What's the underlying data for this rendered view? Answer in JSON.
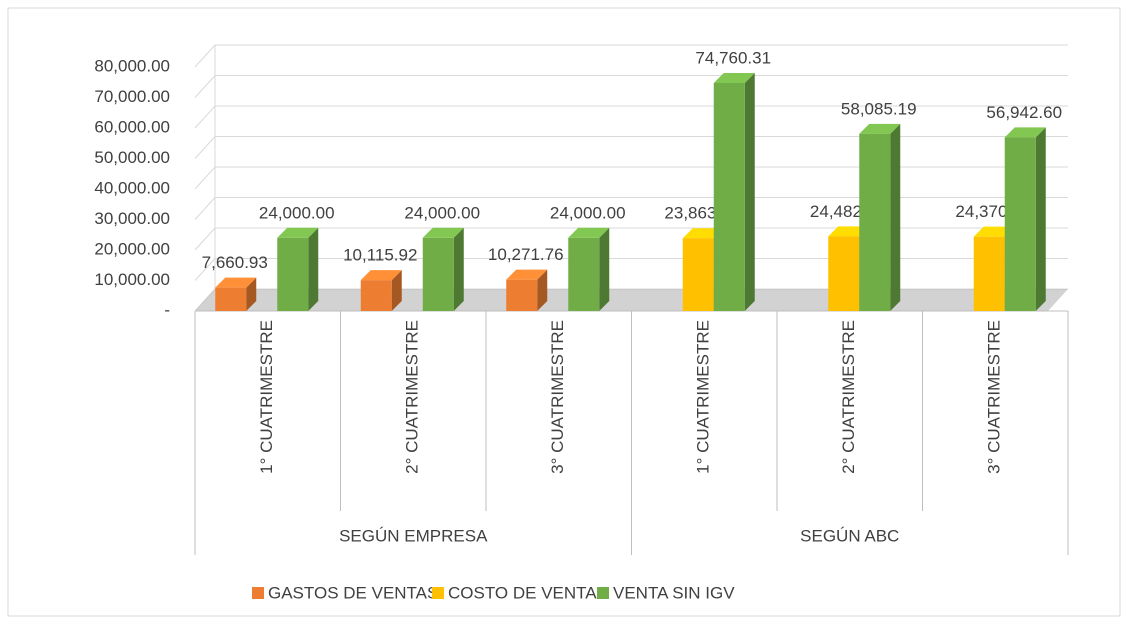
{
  "chart_data": {
    "type": "bar3d",
    "categories": [
      "1° CUATRIMESTRE",
      "2° CUATRIMESTRE",
      "3° CUATRIMESTRE",
      "1° CUATRIMESTRE",
      "2° CUATRIMESTRE",
      "3° CUATRIMESTRE"
    ],
    "groups": [
      {
        "name": "SEGÚN EMPRESA",
        "span": 3
      },
      {
        "name": "SEGÚN ABC",
        "span": 3
      }
    ],
    "series": [
      {
        "name": "GASTOS DE VENTAS",
        "color": "#ed7d31",
        "values": [
          7660.93,
          10115.92,
          10271.76,
          null,
          null,
          null
        ],
        "value_labels": [
          "7,660.93",
          "10,115.92",
          "10,271.76",
          null,
          null,
          null
        ]
      },
      {
        "name": "COSTO DE VENTAS",
        "color": "#ffc000",
        "values": [
          null,
          null,
          null,
          23863.89,
          24482.71,
          24370.87
        ],
        "value_labels": [
          null,
          null,
          null,
          "23,863.89",
          "24,482.71",
          "24,370.87"
        ]
      },
      {
        "name": "VENTA SIN IGV",
        "color": "#70ad47",
        "values": [
          24000,
          24000,
          24000,
          74760.31,
          58085.19,
          56942.6
        ],
        "value_labels": [
          "24,000.00",
          "24,000.00",
          "24,000.00",
          "74,760.31",
          "58,085.19",
          "56,942.60"
        ]
      }
    ],
    "ylim": [
      0,
      80000
    ],
    "yticks": [
      {
        "value": 0,
        "label": "-"
      },
      {
        "value": 10000,
        "label": "10,000.00"
      },
      {
        "value": 20000,
        "label": "20,000.00"
      },
      {
        "value": 30000,
        "label": "30,000.00"
      },
      {
        "value": 40000,
        "label": "40,000.00"
      },
      {
        "value": 50000,
        "label": "50,000.00"
      },
      {
        "value": 60000,
        "label": "60,000.00"
      },
      {
        "value": 70000,
        "label": "70,000.00"
      },
      {
        "value": 80000,
        "label": "80,000.00"
      }
    ],
    "grid": true,
    "legend": "bottom"
  }
}
